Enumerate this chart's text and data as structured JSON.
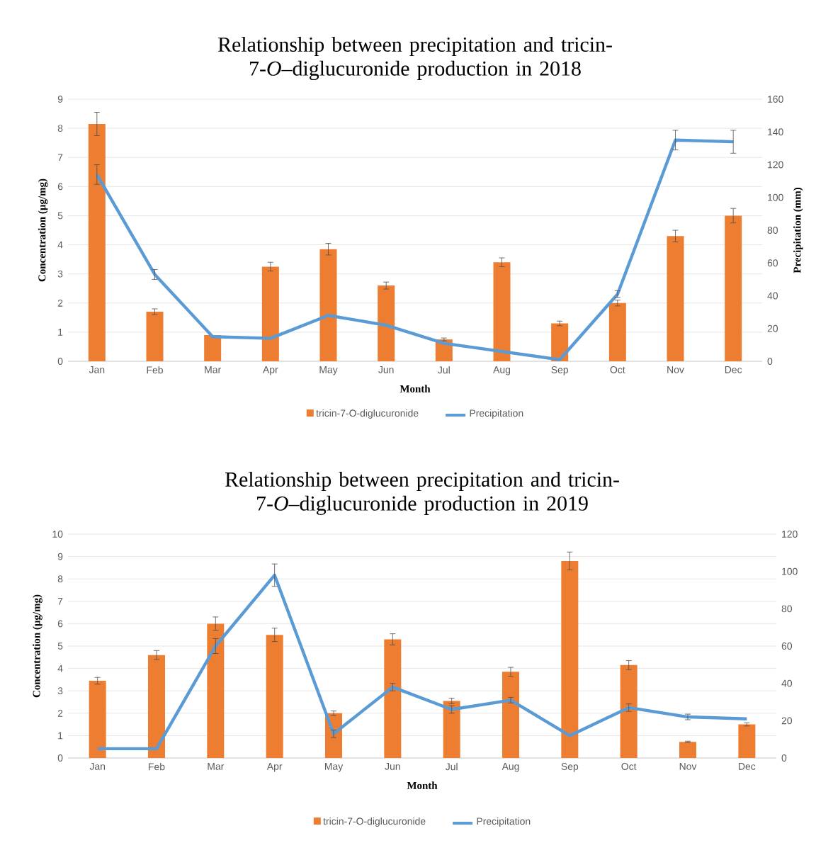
{
  "chart_data": [
    {
      "type": "bar",
      "title": "Relationship between precipitation and tricin-7-*O*–diglucuronide production in 2018",
      "xlabel": "Month",
      "ylabel": "Concentration (µg/mg)",
      "y2label": "Precipitation (mm)",
      "categories": [
        "Jan",
        "Feb",
        "Mar",
        "Apr",
        "May",
        "Jun",
        "Jul",
        "Aug",
        "Sep",
        "Oct",
        "Nov",
        "Dec"
      ],
      "ylim": [
        0,
        9
      ],
      "yticks": [
        0,
        1,
        2,
        3,
        4,
        5,
        6,
        7,
        8,
        9
      ],
      "y2lim": [
        0,
        160
      ],
      "y2ticks": [
        0,
        20,
        40,
        60,
        80,
        100,
        120,
        140,
        160
      ],
      "grid": "y",
      "legend": "bottom",
      "series": [
        {
          "name": "tricin-7-O-diglucuronide",
          "color": "#ed7d31",
          "values": [
            8.15,
            1.7,
            0.9,
            3.25,
            3.85,
            2.6,
            0.75,
            3.4,
            1.3,
            2.0,
            4.3,
            5.0
          ],
          "errors": [
            0.4,
            0.1,
            null,
            0.15,
            0.2,
            0.12,
            0.05,
            0.15,
            0.08,
            0.1,
            0.2,
            0.25
          ]
        },
        {
          "name": "Precipitation",
          "type": "line",
          "axis": "y2",
          "color": "#5b9bd5",
          "values": [
            114,
            53,
            15,
            14,
            28,
            22,
            11,
            6,
            1,
            41,
            135,
            134
          ],
          "errors": [
            6,
            3,
            null,
            null,
            null,
            null,
            null,
            null,
            null,
            2,
            6,
            7
          ]
        }
      ]
    },
    {
      "type": "bar",
      "title": "Relationship between precipitation and tricin-7-*O*–diglucuronide production in 2019",
      "xlabel": "Month",
      "ylabel": "Concentration (µg/mg)",
      "categories": [
        "Jan",
        "Feb",
        "Mar",
        "Apr",
        "May",
        "Jun",
        "Jul",
        "Aug",
        "Sep",
        "Oct",
        "Nov",
        "Dec"
      ],
      "ylim": [
        0,
        10
      ],
      "yticks": [
        0,
        1,
        2,
        3,
        4,
        5,
        6,
        7,
        8,
        9,
        10
      ],
      "y2lim": [
        0,
        120
      ],
      "y2ticks": [
        0,
        20,
        40,
        60,
        80,
        100,
        120
      ],
      "grid": "y",
      "legend": "bottom",
      "series": [
        {
          "name": "tricin-7-O-diglucuronide",
          "color": "#ed7d31",
          "values": [
            3.45,
            4.6,
            6.0,
            5.5,
            2.0,
            5.3,
            2.55,
            3.85,
            8.8,
            4.15,
            0.72,
            1.5
          ],
          "errors": [
            0.15,
            0.2,
            0.3,
            0.3,
            0.1,
            0.25,
            0.12,
            0.2,
            0.4,
            0.2,
            0.03,
            0.07
          ]
        },
        {
          "name": "Precipitation",
          "type": "line",
          "axis": "y2",
          "color": "#5b9bd5",
          "values": [
            5,
            5,
            60,
            98,
            13,
            38,
            26,
            31,
            12,
            27,
            22,
            21
          ],
          "errors": [
            null,
            null,
            4,
            6,
            2,
            2,
            2,
            1.5,
            null,
            2,
            1.5,
            null
          ]
        }
      ]
    }
  ]
}
